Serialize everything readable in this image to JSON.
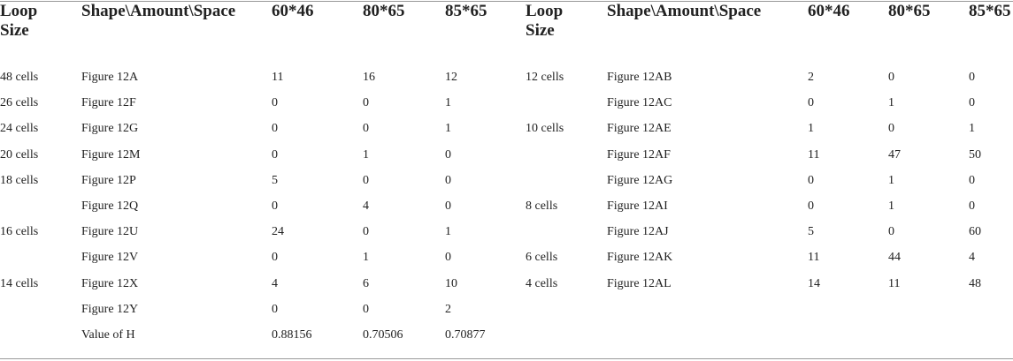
{
  "table": {
    "header": [
      "Loop Size",
      "Shape\\Amount\\Space",
      "60*46",
      "80*65",
      "85*65",
      "Loop Size",
      "Shape\\Amount\\Space",
      "60*46",
      "80*65",
      "85*65"
    ],
    "rows": [
      [
        "48 cells",
        "Figure 12A",
        11,
        16,
        12,
        "12 cells",
        "Figure 12AB",
        2,
        0,
        0
      ],
      [
        "26 cells",
        "Figure 12F",
        0,
        0,
        1,
        null,
        "Figure 12AC",
        0,
        1,
        0
      ],
      [
        "24 cells",
        "Figure 12G",
        0,
        0,
        1,
        "10 cells",
        "Figure 12AE",
        1,
        0,
        1
      ],
      [
        "20 cells",
        "Figure 12M",
        0,
        1,
        0,
        null,
        "Figure 12AF",
        11,
        47,
        50
      ],
      [
        "18 cells",
        "Figure 12P",
        5,
        0,
        0,
        null,
        "Figure 12AG",
        0,
        1,
        0
      ],
      [
        null,
        "Figure 12Q",
        0,
        4,
        0,
        "8 cells",
        "Figure 12AI",
        0,
        1,
        0
      ],
      [
        "16 cells",
        "Figure 12U",
        24,
        0,
        1,
        null,
        "Figure 12AJ",
        5,
        0,
        60
      ],
      [
        null,
        "Figure 12V",
        0,
        1,
        0,
        "6 cells",
        "Figure 12AK",
        11,
        44,
        4
      ],
      [
        "14 cells",
        "Figure 12X",
        4,
        6,
        10,
        "4 cells",
        "Figure 12AL",
        14,
        11,
        48
      ],
      [
        null,
        "Figure 12Y",
        0,
        0,
        2,
        null,
        null,
        null,
        null,
        null
      ],
      [
        null,
        "Value of H",
        0.88156,
        0.70506,
        0.70877,
        null,
        null,
        null,
        null,
        null
      ]
    ]
  }
}
